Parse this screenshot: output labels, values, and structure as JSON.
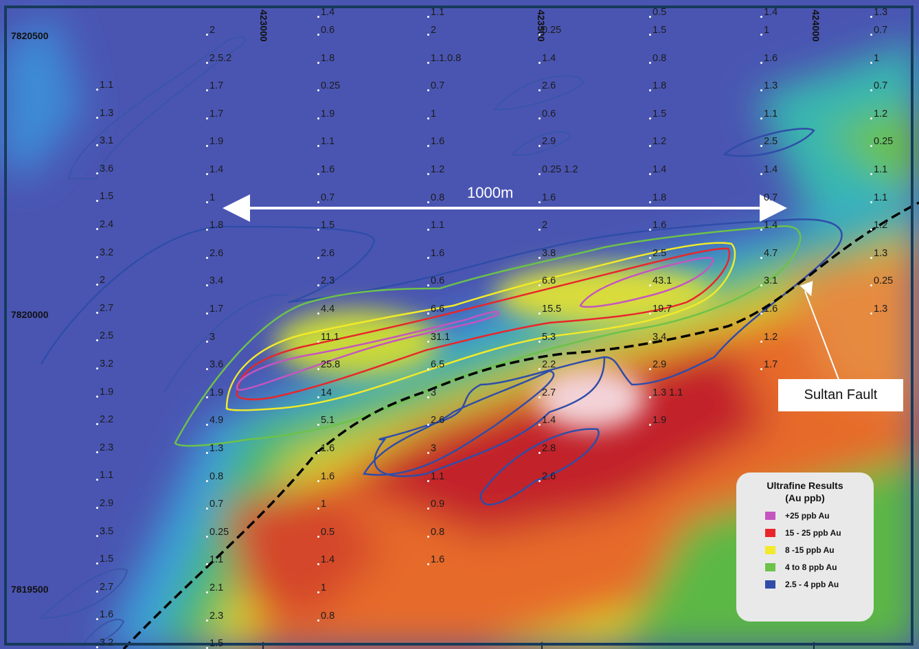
{
  "northings": [
    "7820500",
    "7820000",
    "7819500"
  ],
  "eastings": [
    "423000",
    "423500",
    "424000"
  ],
  "scale_bar": {
    "label": "1000m"
  },
  "fault": {
    "label": "Sultan Fault"
  },
  "legend": {
    "title_line1": "Ultrafine Results",
    "title_line2": "(Au ppb)",
    "items": [
      {
        "label": "+25 ppb Au",
        "color": "#c455c0"
      },
      {
        "label": "15 - 25 ppb Au",
        "color": "#e8262a"
      },
      {
        "label": "8 -15 ppb Au",
        "color": "#f2ea2a"
      },
      {
        "label": "4 to 8 ppb Au",
        "color": "#6cc24a"
      },
      {
        "label": "2.5 - 4 ppb Au",
        "color": "#2f4da8"
      }
    ]
  },
  "sample_columns": [
    [
      "",
      "",
      "1.1",
      "1.3",
      "3.1",
      "3.6",
      "1.5",
      "2.4",
      "3.2",
      "2",
      "2.7",
      "2.5",
      "3.2",
      "1.9",
      "2.2",
      "2.3",
      "1.1",
      "2.9",
      "3.5",
      "1.5",
      "2.7",
      "1.6",
      "3.2"
    ],
    [
      "2",
      "2.5.2",
      "1.7",
      "1.7",
      "1.9",
      "1.4",
      "1",
      "1.8",
      "2.6",
      "3.4",
      "1.7",
      "3",
      "3.6",
      "1.9",
      "4.9",
      "1.3",
      "0.8",
      "0.7",
      "0.25",
      "1.1",
      "2.1",
      "2.3",
      "1.5"
    ],
    [
      "1.4",
      "0.6",
      "1.8",
      "0.25",
      "1.9",
      "1.1",
      "1.6",
      "0.7",
      "1.5",
      "2.6",
      "2.3",
      "4.4",
      "11.1",
      "25.8",
      "14",
      "5.1",
      "1.6",
      "1.6",
      "1",
      "0.5",
      "1.4",
      "1",
      "0.8"
    ],
    [
      "1.1",
      "2",
      "1.1.0.8",
      "0.7",
      "1",
      "1.6",
      "1.2",
      "0.8",
      "1.1",
      "1.6",
      "0.6",
      "6.6",
      "31.1",
      "6.5",
      "3",
      "2.6",
      "3",
      "1.1",
      "0.9",
      "0.8",
      "1.6"
    ],
    [
      "0.25",
      "1.4",
      "2.6",
      "0.6",
      "2.9",
      "0.25 1.2",
      "1.6",
      "2",
      "3.8",
      "6.6",
      "15.5",
      "5.3",
      "2.2",
      "2.7",
      "1.4",
      "2.8",
      "2.6"
    ],
    [
      "0.5",
      "1.5",
      "0.8",
      "1.8",
      "1.5",
      "1.2",
      "1.4",
      "1.8",
      "1.6",
      "2.5",
      "43.1",
      "19.7",
      "3.4",
      "2.9",
      "1.3 1.1",
      "1.9"
    ],
    [
      "1.4",
      "1",
      "1.6",
      "1.3",
      "1.1",
      "2.5",
      "1.4",
      "0.7",
      "1.4",
      "4.7",
      "3.1",
      "1.6",
      "1.2",
      "1.7"
    ],
    [
      "1.3",
      "0.7",
      "1",
      "0.7",
      "1.2",
      "0.25",
      "1.1",
      "1.1",
      "1.2",
      "1.3",
      "0.25",
      "1.3"
    ]
  ]
}
